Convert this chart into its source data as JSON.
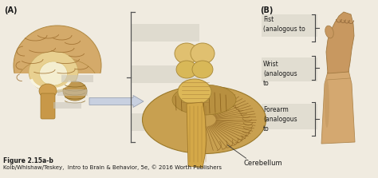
{
  "bg_color": "#f0ebe0",
  "panel_A_label": "(A)",
  "panel_B_label": "(B)",
  "cerebellum_label": "Cerebellum",
  "figure_caption_line1": "Figure 2.15a-b",
  "figure_caption_line2": "Kolb/Whishaw/Teskey,  Intro to Brain & Behavior, 5e, © 2016 Worth Publishers",
  "labels_right": [
    "Fist\n(analogous to",
    "Wrist\n(analogous\nto",
    "Forearm\n(analogous\nto"
  ],
  "arrow_color": "#c8cfe0",
  "text_color": "#1a1a1a",
  "brain_tan": "#c8a060",
  "brain_light": "#e8d090",
  "brain_dark": "#a07030",
  "brain_white": "#f0e8c0",
  "stem_tan": "#d4b060",
  "cereb_tan": "#c09050",
  "cereb_fold": "#9a7040",
  "arm_skin": "#d4a870",
  "arm_dark": "#b08050",
  "arm_shadow": "#c09060",
  "gray_highlight": "#d8d4cc",
  "figsize": [
    4.74,
    2.23
  ],
  "dpi": 100
}
